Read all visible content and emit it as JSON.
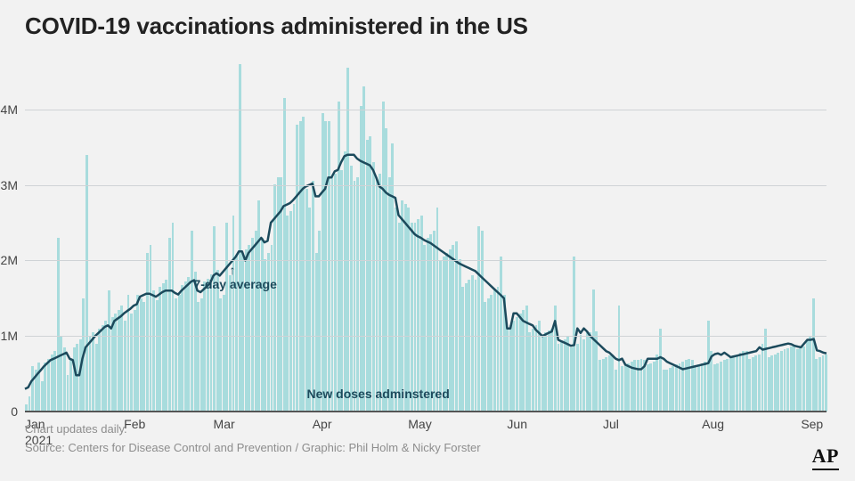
{
  "title": "COVID-19 vaccinations administered in the US",
  "logo_text": "AP",
  "footer": {
    "line1": "Chart updates daily.",
    "line2": "Source: Centers for Disease Control and Prevention / Graphic: Phil Holm & Nicky Forster"
  },
  "chart": {
    "type": "bar+line",
    "colors": {
      "bar_fill": "#a8dcdd",
      "line_stroke": "#1c4a5c",
      "text_dark": "#1c4a5c",
      "grid": "#cfd3d6",
      "baseline": "#555555",
      "background": "#f2f2f2",
      "title_color": "#222222"
    },
    "ylim": [
      0,
      4600000
    ],
    "y_ticks": [
      {
        "value": 0,
        "label": "0"
      },
      {
        "value": 1000000,
        "label": "1M"
      },
      {
        "value": 2000000,
        "label": "2M"
      },
      {
        "value": 3000000,
        "label": "3M"
      },
      {
        "value": 4000000,
        "label": "4M"
      }
    ],
    "x_ticks": [
      {
        "index": 0,
        "label": "Jan\n2021"
      },
      {
        "index": 31,
        "label": "Feb"
      },
      {
        "index": 59,
        "label": "Mar"
      },
      {
        "index": 90,
        "label": "Apr"
      },
      {
        "index": 120,
        "label": "May"
      },
      {
        "index": 151,
        "label": "Jun"
      },
      {
        "index": 181,
        "label": "Jul"
      },
      {
        "index": 212,
        "label": "Aug"
      },
      {
        "index": 243,
        "label": "Sep"
      }
    ],
    "annotations": {
      "line_series": {
        "text": "7-day average",
        "at_index": 64,
        "dy": 14
      },
      "bar_series": {
        "text": "New doses adminstered",
        "at_index": 105
      }
    },
    "line_width": 2.5,
    "n_points": 252,
    "bars": [
      100000,
      200000,
      600000,
      550000,
      650000,
      400000,
      650000,
      700000,
      750000,
      800000,
      2300000,
      1000000,
      850000,
      480000,
      700000,
      850000,
      900000,
      950000,
      1500000,
      3400000,
      1000000,
      1050000,
      900000,
      1100000,
      1150000,
      1200000,
      1600000,
      1250000,
      1300000,
      1350000,
      1400000,
      1200000,
      1550000,
      1300000,
      1350000,
      1550000,
      1500000,
      1450000,
      2100000,
      2200000,
      1600000,
      1480000,
      1650000,
      1700000,
      1750000,
      2300000,
      2500000,
      1500000,
      1550000,
      1680000,
      1720000,
      1780000,
      2400000,
      1850000,
      1450000,
      1500000,
      1720000,
      1760000,
      1820000,
      2450000,
      1880000,
      1500000,
      1550000,
      2500000,
      1800000,
      2600000,
      2080000,
      4600000,
      2100000,
      2150000,
      2200000,
      2300000,
      2400000,
      2800000,
      2300000,
      2020000,
      2100000,
      2200000,
      3010000,
      3100000,
      3100000,
      4150000,
      2600000,
      2650000,
      2750000,
      3800000,
      3850000,
      3900000,
      2950000,
      2700000,
      3050000,
      2100000,
      2400000,
      3950000,
      3850000,
      3850000,
      3100000,
      3150000,
      4100000,
      3200000,
      3450000,
      4550000,
      3250000,
      3050000,
      3100000,
      4050000,
      4300000,
      3600000,
      3650000,
      3300000,
      3100000,
      3150000,
      4100000,
      3750000,
      3100000,
      3550000,
      2700000,
      2500000,
      2800000,
      2750000,
      2700000,
      2500000,
      2500000,
      2550000,
      2600000,
      2200000,
      2300000,
      2350000,
      2400000,
      2700000,
      2000000,
      2050000,
      2100000,
      2150000,
      2200000,
      2250000,
      2020000,
      1650000,
      1700000,
      1750000,
      1800000,
      1750000,
      2450000,
      2400000,
      1450000,
      1500000,
      1550000,
      1600000,
      1650000,
      2050000,
      1550000,
      1100000,
      1150000,
      1200000,
      1250000,
      1300000,
      1350000,
      1400000,
      1050000,
      1100000,
      1150000,
      1200000,
      1020000,
      1050000,
      1070000,
      1100000,
      1400000,
      900000,
      930000,
      960000,
      990000,
      850000,
      2050000,
      900000,
      1020000,
      950000,
      1050000,
      1050000,
      1620000,
      1060000,
      680000,
      700000,
      720000,
      740000,
      760000,
      550000,
      1400000,
      600000,
      620000,
      640000,
      660000,
      680000,
      680000,
      700000,
      680000,
      620000,
      640000,
      660000,
      750000,
      1100000,
      550000,
      560000,
      580000,
      600000,
      620000,
      640000,
      660000,
      680000,
      700000,
      680000,
      600000,
      620000,
      640000,
      660000,
      1200000,
      800000,
      620000,
      640000,
      660000,
      680000,
      700000,
      720000,
      740000,
      760000,
      780000,
      800000,
      800000,
      700000,
      720000,
      740000,
      760000,
      900000,
      1100000,
      720000,
      740000,
      760000,
      780000,
      800000,
      820000,
      840000,
      860000,
      880000,
      820000,
      840000,
      860000,
      940000,
      1000000,
      1500000,
      700000,
      720000,
      740000,
      760000
    ],
    "line": [
      300000,
      320000,
      400000,
      450000,
      500000,
      550000,
      600000,
      640000,
      680000,
      700000,
      720000,
      740000,
      760000,
      780000,
      700000,
      680000,
      480000,
      480000,
      700000,
      850000,
      900000,
      950000,
      1000000,
      1040000,
      1080000,
      1120000,
      1140000,
      1100000,
      1200000,
      1230000,
      1260000,
      1300000,
      1330000,
      1360000,
      1400000,
      1420000,
      1520000,
      1540000,
      1560000,
      1560000,
      1540000,
      1520000,
      1550000,
      1580000,
      1600000,
      1600000,
      1600000,
      1570000,
      1550000,
      1600000,
      1640000,
      1680000,
      1720000,
      1740000,
      1600000,
      1580000,
      1620000,
      1660000,
      1700000,
      1800000,
      1830000,
      1800000,
      1850000,
      1900000,
      1950000,
      2000000,
      2050000,
      2120000,
      2120000,
      2000000,
      2100000,
      2150000,
      2200000,
      2250000,
      2300000,
      2240000,
      2260000,
      2500000,
      2550000,
      2600000,
      2650000,
      2720000,
      2740000,
      2760000,
      2800000,
      2850000,
      2900000,
      2950000,
      2980000,
      3000000,
      3020000,
      2850000,
      2850000,
      2900000,
      2950000,
      3100000,
      3100000,
      3180000,
      3200000,
      3300000,
      3380000,
      3400000,
      3400000,
      3400000,
      3350000,
      3320000,
      3300000,
      3280000,
      3260000,
      3200000,
      3100000,
      2980000,
      2950000,
      2900000,
      2870000,
      2850000,
      2830000,
      2600000,
      2550000,
      2500000,
      2450000,
      2400000,
      2350000,
      2320000,
      2300000,
      2270000,
      2250000,
      2230000,
      2200000,
      2170000,
      2140000,
      2110000,
      2080000,
      2050000,
      2020000,
      1990000,
      1960000,
      1940000,
      1920000,
      1900000,
      1880000,
      1860000,
      1820000,
      1780000,
      1740000,
      1700000,
      1660000,
      1620000,
      1580000,
      1540000,
      1500000,
      1100000,
      1100000,
      1300000,
      1300000,
      1250000,
      1200000,
      1180000,
      1160000,
      1140000,
      1080000,
      1040000,
      1000000,
      1020000,
      1040000,
      1060000,
      1200000,
      950000,
      930000,
      910000,
      890000,
      870000,
      880000,
      1100000,
      1040000,
      1100000,
      1060000,
      1000000,
      960000,
      920000,
      880000,
      840000,
      800000,
      780000,
      740000,
      700000,
      680000,
      700000,
      620000,
      600000,
      580000,
      570000,
      560000,
      560000,
      600000,
      700000,
      700000,
      700000,
      700000,
      720000,
      700000,
      660000,
      640000,
      620000,
      600000,
      580000,
      560000,
      570000,
      580000,
      590000,
      600000,
      610000,
      620000,
      630000,
      640000,
      730000,
      760000,
      770000,
      750000,
      780000,
      750000,
      720000,
      730000,
      740000,
      750000,
      760000,
      770000,
      780000,
      790000,
      800000,
      850000,
      820000,
      830000,
      840000,
      850000,
      860000,
      870000,
      880000,
      890000,
      900000,
      890000,
      870000,
      860000,
      850000,
      900000,
      950000,
      950000,
      960000,
      810000,
      800000,
      780000,
      770000
    ]
  }
}
